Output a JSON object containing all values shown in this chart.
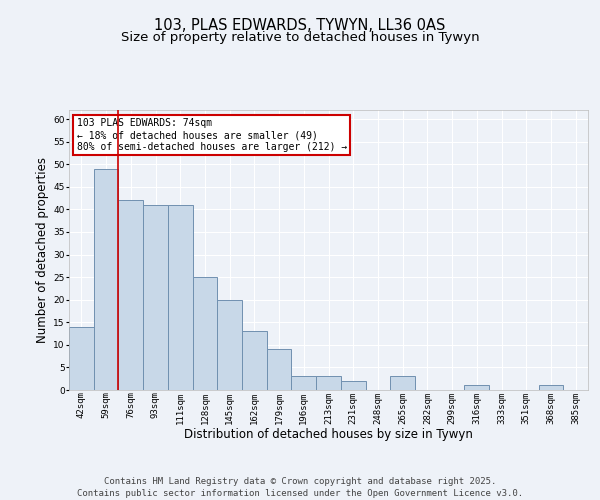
{
  "title_line1": "103, PLAS EDWARDS, TYWYN, LL36 0AS",
  "title_line2": "Size of property relative to detached houses in Tywyn",
  "xlabel": "Distribution of detached houses by size in Tywyn",
  "ylabel": "Number of detached properties",
  "categories": [
    "42sqm",
    "59sqm",
    "76sqm",
    "93sqm",
    "111sqm",
    "128sqm",
    "145sqm",
    "162sqm",
    "179sqm",
    "196sqm",
    "213sqm",
    "231sqm",
    "248sqm",
    "265sqm",
    "282sqm",
    "299sqm",
    "316sqm",
    "333sqm",
    "351sqm",
    "368sqm",
    "385sqm"
  ],
  "values": [
    14,
    49,
    42,
    41,
    41,
    25,
    20,
    13,
    9,
    3,
    3,
    2,
    0,
    3,
    0,
    0,
    1,
    0,
    0,
    1,
    0
  ],
  "bar_color": "#c8d8e8",
  "bar_edge_color": "#7090b0",
  "vline_x_index": 1.5,
  "vline_color": "#cc0000",
  "annotation_box_text": "103 PLAS EDWARDS: 74sqm\n← 18% of detached houses are smaller (49)\n80% of semi-detached houses are larger (212) →",
  "annotation_box_color": "#cc0000",
  "ylim": [
    0,
    62
  ],
  "yticks": [
    0,
    5,
    10,
    15,
    20,
    25,
    30,
    35,
    40,
    45,
    50,
    55,
    60
  ],
  "footer": "Contains HM Land Registry data © Crown copyright and database right 2025.\nContains public sector information licensed under the Open Government Licence v3.0.",
  "background_color": "#eef2f8",
  "plot_background_color": "#eef2f8",
  "grid_color": "#ffffff",
  "title_fontsize": 10.5,
  "subtitle_fontsize": 9.5,
  "tick_fontsize": 6.5,
  "ylabel_fontsize": 8.5,
  "xlabel_fontsize": 8.5,
  "footer_fontsize": 6.5,
  "ann_fontsize": 7.0
}
